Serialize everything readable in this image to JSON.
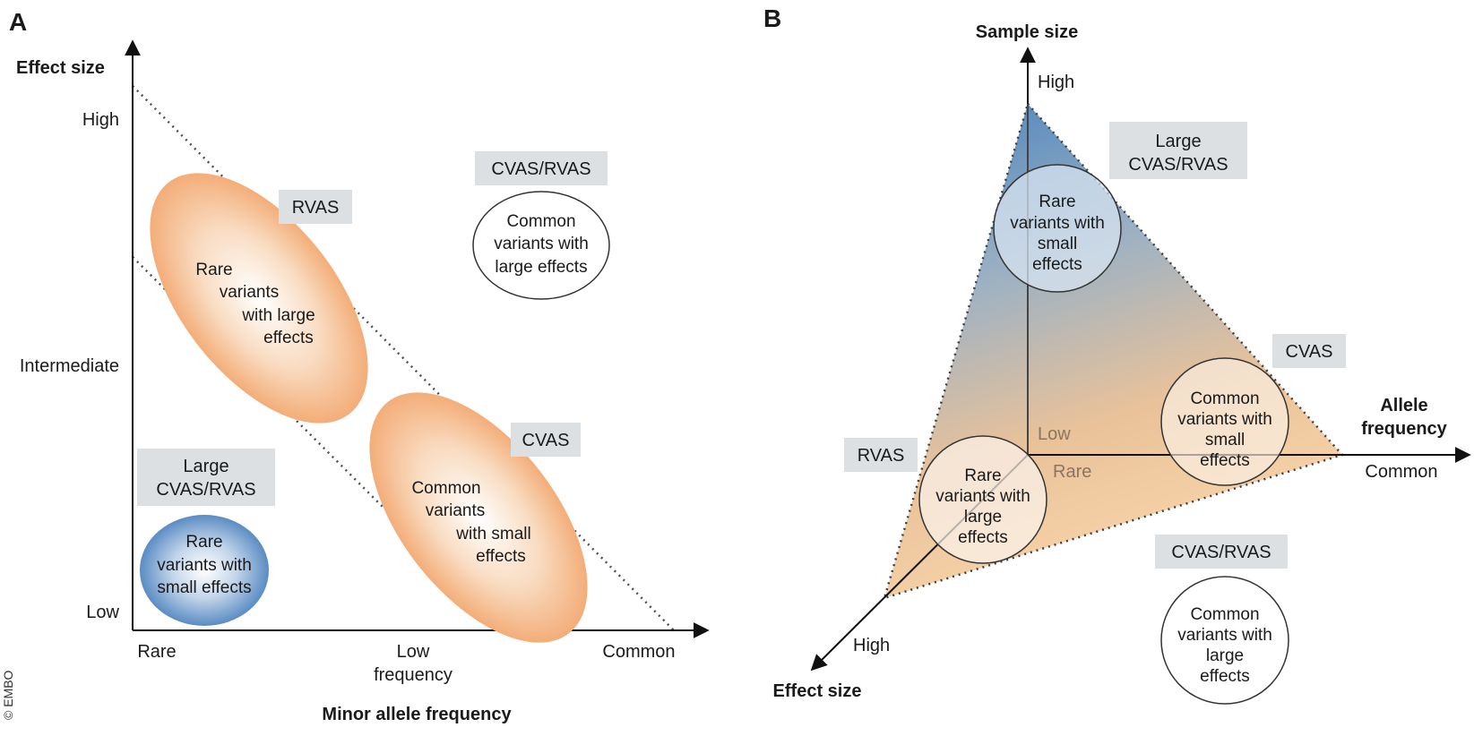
{
  "copyright": "© EMBO",
  "panelA": {
    "letter": "A",
    "y_axis_title": "Effect size",
    "x_axis_title": "Minor allele frequency",
    "y_ticks": {
      "high": "High",
      "intermediate": "Intermediate",
      "low": "Low"
    },
    "x_ticks": {
      "rare": "Rare",
      "low_frequency": [
        "Low",
        "frequency"
      ],
      "common": "Common"
    },
    "boxes": {
      "rvas": [
        "RVAS"
      ],
      "cvas_rvas": [
        "CVAS/RVAS"
      ],
      "large_cvas_rvas": [
        "Large",
        "CVAS/RVAS"
      ],
      "cvas": [
        "CVAS"
      ]
    },
    "blobs": {
      "rare_large": [
        "Rare",
        "variants",
        "with large",
        "effects"
      ],
      "common_small": [
        "Common",
        "variants",
        "with small",
        "effects"
      ],
      "common_large": [
        "Common",
        "variants with",
        "large effects"
      ],
      "rare_small": [
        "Rare",
        "variants with",
        "small effects"
      ]
    },
    "colors": {
      "orange": "#f4b98a",
      "blue": "#5f8fc5"
    }
  },
  "panelB": {
    "letter": "B",
    "axis_sample_size": {
      "title": "Sample size",
      "high": "High",
      "low": "Low"
    },
    "axis_allele_frequency": {
      "title": [
        "Allele",
        "frequency"
      ],
      "common": "Common",
      "rare": "Rare"
    },
    "axis_effect_size": {
      "title": "Effect size",
      "high": "High"
    },
    "boxes": {
      "large_cvas_rvas": [
        "Large",
        "CVAS/RVAS"
      ],
      "cvas": [
        "CVAS"
      ],
      "rvas": [
        "RVAS"
      ],
      "cvas_rvas": [
        "CVAS/RVAS"
      ]
    },
    "circles": {
      "rare_small": [
        "Rare",
        "variants with",
        "small",
        "effects"
      ],
      "common_small": [
        "Common",
        "variants with",
        "small",
        "effects"
      ],
      "rare_large": [
        "Rare",
        "variants with",
        "large",
        "effects"
      ],
      "common_large": [
        "Common",
        "variants with",
        "large",
        "effects"
      ]
    },
    "colors": {
      "gradient_top": "#4f86bf",
      "gradient_bottom": "#f7c58f"
    }
  }
}
